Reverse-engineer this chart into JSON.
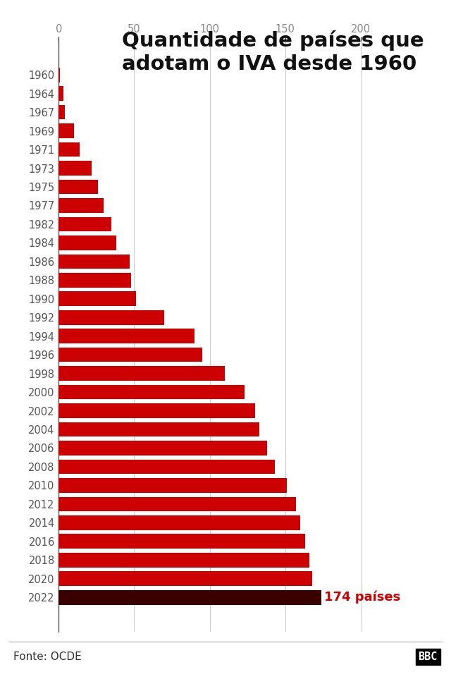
{
  "title": "Quantidade de países que\nadotam o IVA desde 1960",
  "years": [
    1960,
    1964,
    1967,
    1969,
    1971,
    1973,
    1975,
    1977,
    1982,
    1984,
    1986,
    1988,
    1990,
    1992,
    1994,
    1996,
    1998,
    2000,
    2002,
    2004,
    2006,
    2008,
    2010,
    2012,
    2014,
    2016,
    2018,
    2020,
    2022
  ],
  "values": [
    1,
    3,
    4,
    10,
    14,
    22,
    26,
    30,
    35,
    38,
    47,
    48,
    51,
    70,
    90,
    95,
    110,
    123,
    130,
    133,
    138,
    143,
    151,
    157,
    160,
    163,
    166,
    168,
    174
  ],
  "bar_color": "#CC0000",
  "bar_color_last": "#3a0000",
  "label_last": "174 países",
  "label_last_color": "#CC0000",
  "xlabel_ticks": [
    0,
    50,
    100,
    150,
    200
  ],
  "xlim": [
    0,
    215
  ],
  "source": "Fonte: OCDE",
  "logo": "BBC",
  "background_color": "#ffffff",
  "grid_color": "#cccccc",
  "title_fontsize": 21,
  "tick_fontsize": 10.5,
  "source_fontsize": 11,
  "bar_height": 0.78
}
